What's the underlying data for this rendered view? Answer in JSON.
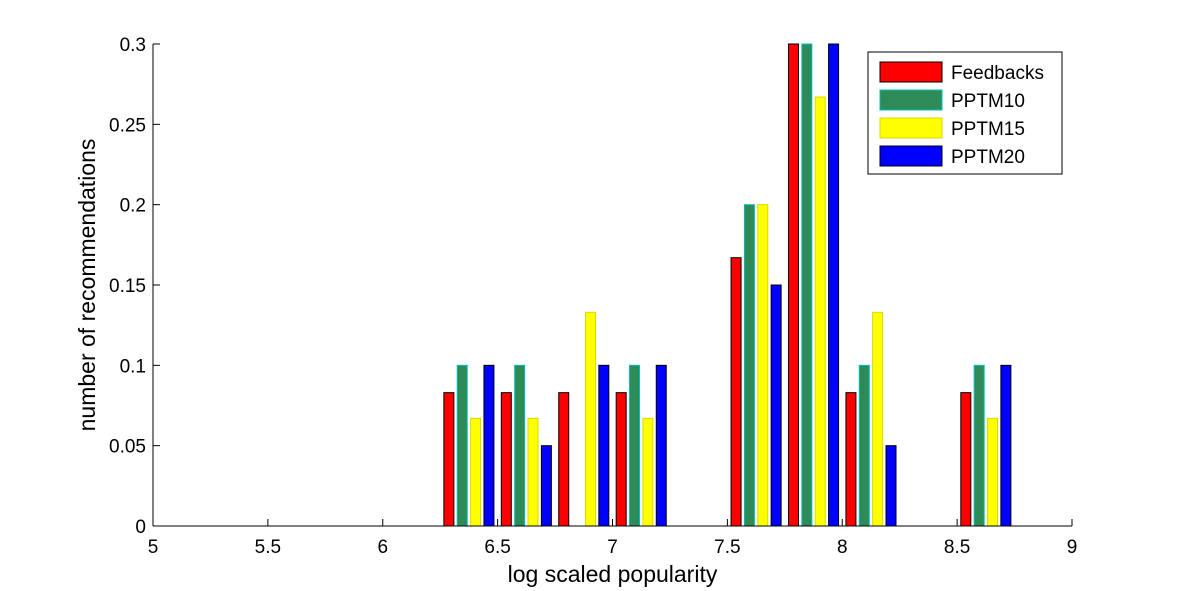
{
  "chart_data": {
    "type": "bar",
    "title": "",
    "xlabel": "log scaled popularity",
    "ylabel": "number of recommendations",
    "xlim": [
      5,
      9
    ],
    "ylim": [
      0,
      0.3
    ],
    "xticks": [
      "5",
      "5.5",
      "6",
      "6.5",
      "7",
      "7.5",
      "8",
      "8.5",
      "9"
    ],
    "yticks": [
      "0",
      "0.05",
      "0.1",
      "0.15",
      "0.2",
      "0.25",
      "0.3"
    ],
    "xtick_values": [
      5,
      5.5,
      6,
      6.5,
      7,
      7.5,
      8,
      8.5,
      9
    ],
    "ytick_values": [
      0,
      0.05,
      0.1,
      0.15,
      0.2,
      0.25,
      0.3
    ],
    "grid": false,
    "legend_position": "top-right",
    "x": [
      5.125,
      5.375,
      5.625,
      5.875,
      6.125,
      6.375,
      6.625,
      6.875,
      7.125,
      7.375,
      7.625,
      7.875,
      8.125,
      8.375,
      8.625,
      8.875
    ],
    "series": [
      {
        "name": "Feedbacks",
        "color": "#ff0000",
        "edge": "#000000",
        "values": [
          0,
          0,
          0,
          0,
          0,
          0.083,
          0.083,
          0.083,
          0.083,
          0,
          0.167,
          0.3,
          0.083,
          0,
          0.083,
          0
        ]
      },
      {
        "name": "PPTM10",
        "color": "#2e8b57",
        "edge": "#00bfbf",
        "values": [
          0,
          0,
          0,
          0,
          0,
          0.1,
          0.1,
          0,
          0.1,
          0,
          0.2,
          0.3,
          0.1,
          0,
          0.1,
          0
        ]
      },
      {
        "name": "PPTM15",
        "color": "#ffff00",
        "edge": "#d9d900",
        "values": [
          0,
          0,
          0,
          0,
          0,
          0.067,
          0.067,
          0.133,
          0.067,
          0,
          0.2,
          0.267,
          0.133,
          0,
          0.067,
          0
        ]
      },
      {
        "name": "PPTM20",
        "color": "#0000ff",
        "edge": "#000000",
        "values": [
          0,
          0,
          0,
          0,
          0,
          0.1,
          0.05,
          0.1,
          0.1,
          0,
          0.15,
          0.3,
          0.05,
          0,
          0.1,
          0
        ]
      }
    ]
  }
}
